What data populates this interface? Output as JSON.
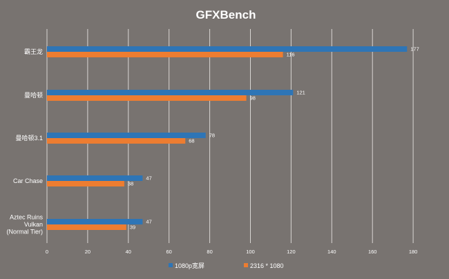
{
  "chart_data": {
    "type": "bar",
    "orientation": "horizontal",
    "title": "GFXBench",
    "categories": [
      [
        "霸王龙"
      ],
      [
        "曼哈顿"
      ],
      [
        "曼哈顿3.1"
      ],
      [
        "Car Chase"
      ],
      [
        "Aztec Ruins",
        "Vulkan",
        "(Normal Tier)"
      ]
    ],
    "series": [
      {
        "name": "1080p宽屏",
        "color": "#2e75b6",
        "values": [
          177,
          121,
          78,
          47,
          47
        ]
      },
      {
        "name": "2316 * 1080",
        "color": "#ed7d31",
        "values": [
          116,
          98,
          68,
          38,
          39
        ]
      }
    ],
    "xlim": [
      0,
      180
    ],
    "xticks": [
      0,
      20,
      40,
      60,
      80,
      100,
      120,
      140,
      160,
      180
    ],
    "grid": true,
    "legend": "bottom"
  }
}
